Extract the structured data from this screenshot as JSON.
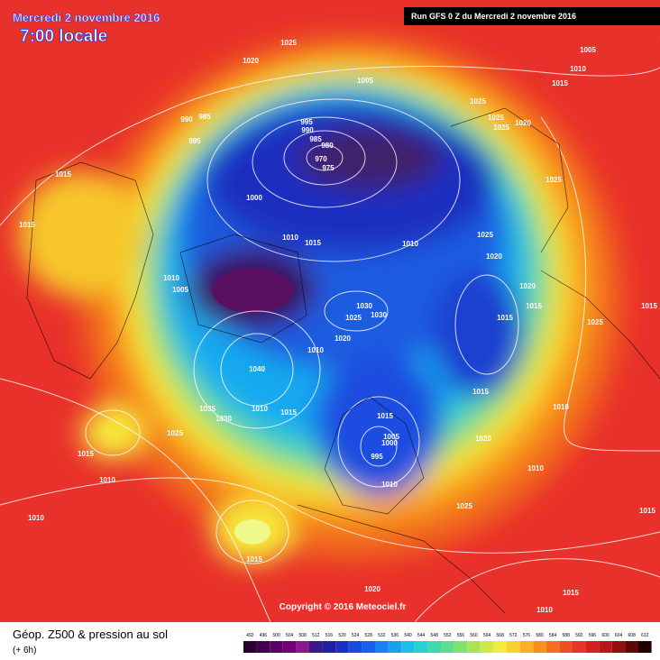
{
  "header": {
    "title": "Mercredi 2 novembre 2016",
    "time": "7:00 locale",
    "run": "Run GFS 0 Z du Mercredi 2 novembre 2016"
  },
  "isobar_labels": [
    1025,
    1020,
    1005,
    1005,
    1010,
    1015,
    990,
    985,
    995,
    990,
    985,
    980,
    970,
    975,
    995,
    1025,
    1025,
    1025,
    1020,
    1025,
    1015,
    1000,
    1015,
    1010,
    1025,
    1020,
    1010,
    1015,
    1010,
    1005,
    1020,
    1015,
    1025,
    1015,
    1015,
    1030,
    1025,
    1030,
    1020,
    1010,
    1040,
    1015,
    1010,
    1035,
    1030,
    1010,
    1015,
    1015,
    1005,
    1000,
    995,
    1020,
    1025,
    1015,
    1010,
    1010,
    1010,
    1025,
    1010,
    1015,
    1020,
    1015,
    1015,
    1010
  ],
  "copyright": "Copyright © 2016 Meteociel.fr",
  "footer": {
    "title": "Géop. Z500 & pression au sol",
    "lead": "(+ 6h)"
  },
  "scale": [
    492,
    496,
    500,
    504,
    508,
    512,
    516,
    520,
    524,
    528,
    532,
    536,
    540,
    544,
    548,
    552,
    556,
    560,
    564,
    568,
    572,
    576,
    580,
    584,
    588,
    592,
    596,
    600,
    604,
    608,
    612
  ]
}
